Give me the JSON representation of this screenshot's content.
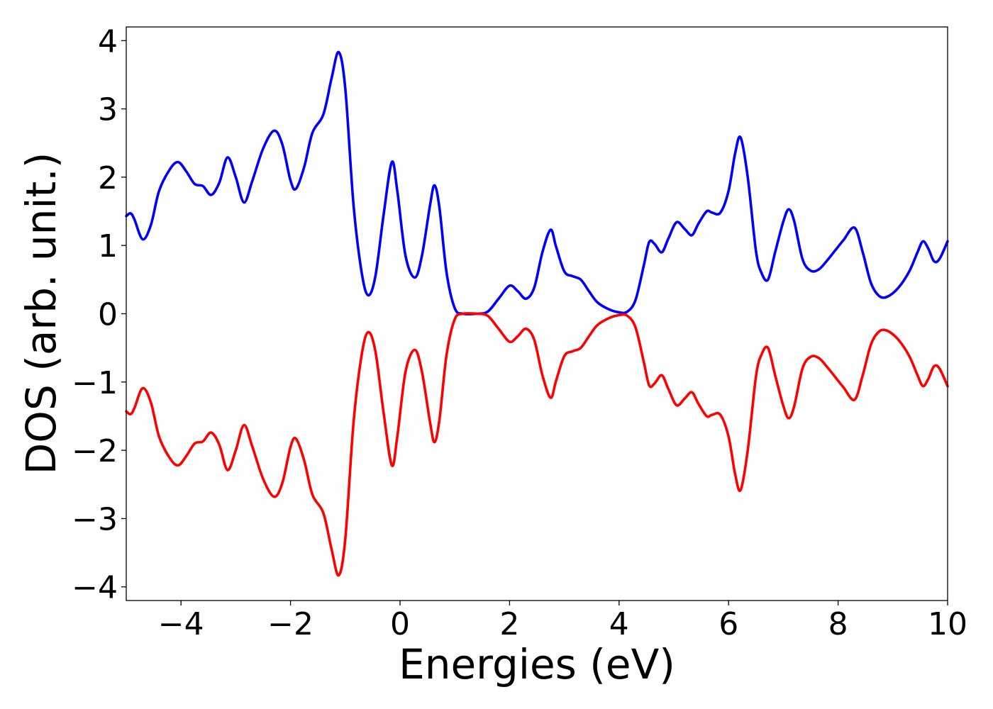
{
  "chart_data": {
    "type": "line",
    "title": "",
    "xlabel": "Energies (eV)",
    "ylabel": "DOS (arb. unit.)",
    "xlim": [
      -5,
      10
    ],
    "ylim": [
      -4.2,
      4.2
    ],
    "xticks": [
      -4,
      -2,
      0,
      2,
      4,
      6,
      8,
      10
    ],
    "yticks": [
      -4,
      -3,
      -2,
      -1,
      0,
      1,
      2,
      3,
      4
    ],
    "xtick_labels": [
      "−4",
      "−2",
      "0",
      "2",
      "4",
      "6",
      "8",
      "10"
    ],
    "ytick_labels": [
      "−4",
      "−3",
      "−2",
      "−1",
      "0",
      "1",
      "2",
      "3",
      "4"
    ],
    "grid": false,
    "legend": "none",
    "series": [
      {
        "color": "#0000ff",
        "points": [
          [
            -5.0,
            1.43
          ],
          [
            -4.92,
            1.47
          ],
          [
            -4.85,
            1.38
          ],
          [
            -4.7,
            1.09
          ],
          [
            -4.55,
            1.3
          ],
          [
            -4.4,
            1.8
          ],
          [
            -4.2,
            2.12
          ],
          [
            -4.05,
            2.22
          ],
          [
            -3.9,
            2.08
          ],
          [
            -3.75,
            1.9
          ],
          [
            -3.6,
            1.87
          ],
          [
            -3.45,
            1.74
          ],
          [
            -3.3,
            1.92
          ],
          [
            -3.15,
            2.29
          ],
          [
            -3.0,
            2.0
          ],
          [
            -2.85,
            1.63
          ],
          [
            -2.7,
            1.94
          ],
          [
            -2.5,
            2.42
          ],
          [
            -2.3,
            2.68
          ],
          [
            -2.15,
            2.48
          ],
          [
            -2.0,
            1.95
          ],
          [
            -1.9,
            1.83
          ],
          [
            -1.75,
            2.15
          ],
          [
            -1.6,
            2.65
          ],
          [
            -1.4,
            2.92
          ],
          [
            -1.25,
            3.45
          ],
          [
            -1.12,
            3.83
          ],
          [
            -1.0,
            3.3
          ],
          [
            -0.85,
            1.6
          ],
          [
            -0.7,
            0.6
          ],
          [
            -0.58,
            0.27
          ],
          [
            -0.45,
            0.55
          ],
          [
            -0.3,
            1.45
          ],
          [
            -0.15,
            2.22
          ],
          [
            -0.05,
            1.8
          ],
          [
            0.1,
            0.85
          ],
          [
            0.27,
            0.53
          ],
          [
            0.4,
            0.85
          ],
          [
            0.55,
            1.6
          ],
          [
            0.63,
            1.88
          ],
          [
            0.72,
            1.55
          ],
          [
            0.85,
            0.6
          ],
          [
            1.0,
            0.08
          ],
          [
            1.15,
            0.0
          ],
          [
            1.4,
            0.0
          ],
          [
            1.6,
            0.03
          ],
          [
            1.8,
            0.22
          ],
          [
            2.0,
            0.41
          ],
          [
            2.15,
            0.33
          ],
          [
            2.3,
            0.22
          ],
          [
            2.45,
            0.38
          ],
          [
            2.6,
            0.9
          ],
          [
            2.75,
            1.23
          ],
          [
            2.85,
            0.98
          ],
          [
            3.0,
            0.62
          ],
          [
            3.15,
            0.55
          ],
          [
            3.3,
            0.5
          ],
          [
            3.45,
            0.33
          ],
          [
            3.6,
            0.17
          ],
          [
            3.8,
            0.07
          ],
          [
            4.0,
            0.02
          ],
          [
            4.15,
            0.03
          ],
          [
            4.3,
            0.2
          ],
          [
            4.45,
            0.7
          ],
          [
            4.55,
            1.05
          ],
          [
            4.65,
            1.02
          ],
          [
            4.78,
            0.9
          ],
          [
            4.9,
            1.1
          ],
          [
            5.05,
            1.34
          ],
          [
            5.2,
            1.24
          ],
          [
            5.33,
            1.15
          ],
          [
            5.45,
            1.32
          ],
          [
            5.6,
            1.5
          ],
          [
            5.7,
            1.48
          ],
          [
            5.85,
            1.48
          ],
          [
            6.0,
            1.8
          ],
          [
            6.12,
            2.35
          ],
          [
            6.22,
            2.58
          ],
          [
            6.35,
            2.0
          ],
          [
            6.5,
            0.92
          ],
          [
            6.6,
            0.6
          ],
          [
            6.72,
            0.5
          ],
          [
            6.85,
            0.9
          ],
          [
            7.0,
            1.35
          ],
          [
            7.1,
            1.53
          ],
          [
            7.2,
            1.35
          ],
          [
            7.35,
            0.8
          ],
          [
            7.5,
            0.63
          ],
          [
            7.65,
            0.65
          ],
          [
            7.8,
            0.78
          ],
          [
            7.95,
            0.93
          ],
          [
            8.1,
            1.08
          ],
          [
            8.3,
            1.26
          ],
          [
            8.45,
            0.9
          ],
          [
            8.6,
            0.45
          ],
          [
            8.75,
            0.26
          ],
          [
            8.9,
            0.25
          ],
          [
            9.1,
            0.38
          ],
          [
            9.3,
            0.62
          ],
          [
            9.45,
            0.9
          ],
          [
            9.55,
            1.06
          ],
          [
            9.65,
            0.95
          ],
          [
            9.75,
            0.77
          ],
          [
            9.85,
            0.8
          ],
          [
            10.0,
            1.06
          ]
        ]
      },
      {
        "color": "#ff0000",
        "points": [
          [
            -5.0,
            -1.43
          ],
          [
            -4.92,
            -1.47
          ],
          [
            -4.85,
            -1.38
          ],
          [
            -4.7,
            -1.09
          ],
          [
            -4.55,
            -1.3
          ],
          [
            -4.4,
            -1.8
          ],
          [
            -4.2,
            -2.12
          ],
          [
            -4.05,
            -2.22
          ],
          [
            -3.9,
            -2.08
          ],
          [
            -3.75,
            -1.9
          ],
          [
            -3.6,
            -1.87
          ],
          [
            -3.45,
            -1.74
          ],
          [
            -3.3,
            -1.92
          ],
          [
            -3.15,
            -2.29
          ],
          [
            -3.0,
            -2.0
          ],
          [
            -2.85,
            -1.63
          ],
          [
            -2.7,
            -1.94
          ],
          [
            -2.5,
            -2.42
          ],
          [
            -2.3,
            -2.68
          ],
          [
            -2.15,
            -2.48
          ],
          [
            -2.0,
            -1.95
          ],
          [
            -1.9,
            -1.83
          ],
          [
            -1.75,
            -2.15
          ],
          [
            -1.6,
            -2.65
          ],
          [
            -1.4,
            -2.92
          ],
          [
            -1.25,
            -3.45
          ],
          [
            -1.12,
            -3.83
          ],
          [
            -1.0,
            -3.3
          ],
          [
            -0.85,
            -1.6
          ],
          [
            -0.7,
            -0.6
          ],
          [
            -0.58,
            -0.27
          ],
          [
            -0.45,
            -0.55
          ],
          [
            -0.3,
            -1.45
          ],
          [
            -0.15,
            -2.22
          ],
          [
            -0.05,
            -1.8
          ],
          [
            0.1,
            -0.85
          ],
          [
            0.27,
            -0.53
          ],
          [
            0.4,
            -0.85
          ],
          [
            0.55,
            -1.6
          ],
          [
            0.63,
            -1.88
          ],
          [
            0.72,
            -1.55
          ],
          [
            0.85,
            -0.6
          ],
          [
            1.0,
            -0.08
          ],
          [
            1.15,
            0.0
          ],
          [
            1.4,
            0.0
          ],
          [
            1.6,
            -0.03
          ],
          [
            1.8,
            -0.22
          ],
          [
            2.0,
            -0.41
          ],
          [
            2.15,
            -0.33
          ],
          [
            2.3,
            -0.22
          ],
          [
            2.45,
            -0.38
          ],
          [
            2.6,
            -0.9
          ],
          [
            2.75,
            -1.23
          ],
          [
            2.85,
            -0.98
          ],
          [
            3.0,
            -0.62
          ],
          [
            3.15,
            -0.55
          ],
          [
            3.3,
            -0.5
          ],
          [
            3.45,
            -0.33
          ],
          [
            3.6,
            -0.17
          ],
          [
            3.8,
            -0.07
          ],
          [
            4.0,
            -0.02
          ],
          [
            4.15,
            -0.03
          ],
          [
            4.3,
            -0.2
          ],
          [
            4.45,
            -0.7
          ],
          [
            4.55,
            -1.05
          ],
          [
            4.65,
            -1.02
          ],
          [
            4.78,
            -0.9
          ],
          [
            4.9,
            -1.1
          ],
          [
            5.05,
            -1.34
          ],
          [
            5.2,
            -1.24
          ],
          [
            5.33,
            -1.15
          ],
          [
            5.45,
            -1.32
          ],
          [
            5.6,
            -1.5
          ],
          [
            5.7,
            -1.48
          ],
          [
            5.85,
            -1.48
          ],
          [
            6.0,
            -1.8
          ],
          [
            6.12,
            -2.35
          ],
          [
            6.22,
            -2.58
          ],
          [
            6.35,
            -2.0
          ],
          [
            6.5,
            -0.92
          ],
          [
            6.6,
            -0.6
          ],
          [
            6.72,
            -0.5
          ],
          [
            6.85,
            -0.9
          ],
          [
            7.0,
            -1.35
          ],
          [
            7.1,
            -1.53
          ],
          [
            7.2,
            -1.35
          ],
          [
            7.35,
            -0.8
          ],
          [
            7.5,
            -0.63
          ],
          [
            7.65,
            -0.65
          ],
          [
            7.8,
            -0.78
          ],
          [
            7.95,
            -0.93
          ],
          [
            8.1,
            -1.08
          ],
          [
            8.3,
            -1.26
          ],
          [
            8.45,
            -0.9
          ],
          [
            8.6,
            -0.45
          ],
          [
            8.75,
            -0.26
          ],
          [
            8.9,
            -0.25
          ],
          [
            9.1,
            -0.38
          ],
          [
            9.3,
            -0.62
          ],
          [
            9.45,
            -0.9
          ],
          [
            9.55,
            -1.06
          ],
          [
            9.65,
            -0.95
          ],
          [
            9.75,
            -0.77
          ],
          [
            9.85,
            -0.8
          ],
          [
            10.0,
            -1.06
          ]
        ]
      }
    ]
  }
}
